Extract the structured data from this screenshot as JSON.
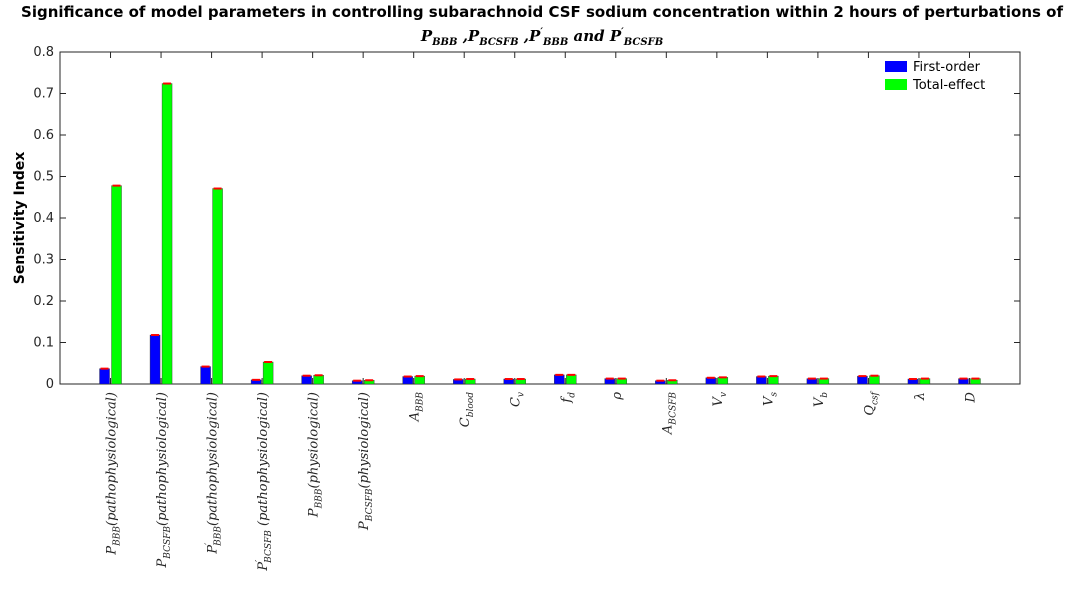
{
  "title": {
    "line1": "Significance of model parameters in controlling subarachnoid CSF sodium concentration within 2 hours of perturbations of",
    "line2_parts": [
      {
        "t": "P",
        "s": "BBB",
        "p": ""
      },
      {
        "t": " ,P",
        "s": "BCSFB",
        "p": ""
      },
      {
        "t": " ,P",
        "s": "BBB",
        "p": "′"
      },
      {
        "t": " and P",
        "s": "BCSFB",
        "p": "′"
      }
    ]
  },
  "colors": {
    "first_order": "#0000ff",
    "total_effect": "#00ff00",
    "error_bar": "#ff0000",
    "axis": "#262626"
  },
  "chart_data": {
    "type": "bar",
    "ylabel": "Sensitivity Index",
    "xlabel": "",
    "ylim": [
      0,
      0.8
    ],
    "yticks": [
      "0",
      "0.1",
      "0.2",
      "0.3",
      "0.4",
      "0.5",
      "0.6",
      "0.7",
      "0.8"
    ],
    "legend_position": "top-right",
    "grid": false,
    "categories": [
      {
        "main": "P",
        "sub": "BBB",
        "prime": false,
        "suffix": "(pathophysiological)"
      },
      {
        "main": "P",
        "sub": "BCSFB",
        "prime": false,
        "suffix": "(pathophysiological)"
      },
      {
        "main": "P",
        "sub": "BBB",
        "prime": true,
        "suffix": "(pathophysiological)"
      },
      {
        "main": "P",
        "sub": "BCSFB",
        "prime": true,
        "suffix": " (pathophysiological)"
      },
      {
        "main": "P",
        "sub": "BBB",
        "prime": false,
        "suffix": "(physiological)"
      },
      {
        "main": "P",
        "sub": "BCSFB",
        "prime": false,
        "suffix": "(physiological)"
      },
      {
        "main": "A",
        "sub": "BBB",
        "prime": false,
        "suffix": ""
      },
      {
        "main": "C",
        "sub": "blood",
        "prime": false,
        "suffix": ""
      },
      {
        "main": "C",
        "sub": "v",
        "prime": false,
        "suffix": ""
      },
      {
        "main": "f",
        "sub": "d",
        "prime": false,
        "suffix": ""
      },
      {
        "main": "ρ",
        "sub": "",
        "prime": false,
        "suffix": ""
      },
      {
        "main": "A",
        "sub": "BCSFB",
        "prime": false,
        "suffix": ""
      },
      {
        "main": "V",
        "sub": "v",
        "prime": false,
        "suffix": ""
      },
      {
        "main": "V",
        "sub": "s",
        "prime": false,
        "suffix": ""
      },
      {
        "main": "V",
        "sub": "b",
        "prime": false,
        "suffix": ""
      },
      {
        "main": "Q",
        "sub": "csf",
        "prime": false,
        "suffix": ""
      },
      {
        "main": "λ",
        "sub": "",
        "prime": false,
        "suffix": ""
      },
      {
        "main": "D",
        "sub": "",
        "prime": false,
        "suffix": ""
      }
    ],
    "series": [
      {
        "name": "First-order",
        "values": [
          0.037,
          0.118,
          0.042,
          0.01,
          0.02,
          0.008,
          0.018,
          0.011,
          0.012,
          0.022,
          0.013,
          0.008,
          0.015,
          0.018,
          0.013,
          0.019,
          0.012,
          0.013
        ]
      },
      {
        "name": "Total-effect",
        "values": [
          0.478,
          0.724,
          0.471,
          0.053,
          0.021,
          0.009,
          0.019,
          0.012,
          0.012,
          0.022,
          0.013,
          0.009,
          0.016,
          0.019,
          0.013,
          0.02,
          0.013,
          0.013
        ]
      }
    ]
  }
}
